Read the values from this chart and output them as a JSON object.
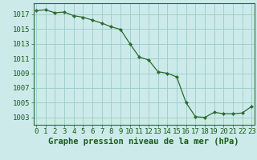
{
  "xlabel": "Graphe pression niveau de la mer (hPa)",
  "x_vals": [
    0,
    1,
    2,
    3,
    4,
    5,
    6,
    7,
    8,
    9,
    10,
    11,
    12,
    13,
    14,
    15,
    16,
    17,
    18,
    19,
    20,
    21,
    22,
    23
  ],
  "y_vals": [
    1017.5,
    1017.6,
    1017.2,
    1017.3,
    1016.8,
    1016.6,
    1016.2,
    1015.8,
    1015.3,
    1014.95,
    1013.0,
    1011.2,
    1010.8,
    1009.2,
    1009.0,
    1008.5,
    1005.0,
    1003.1,
    1003.0,
    1003.7,
    1003.5,
    1003.5,
    1003.6,
    1004.5
  ],
  "ylim": [
    1002.0,
    1018.5
  ],
  "xlim": [
    -0.3,
    23.3
  ],
  "yticks": [
    1003,
    1005,
    1007,
    1009,
    1011,
    1013,
    1015,
    1017
  ],
  "xticks": [
    0,
    1,
    2,
    3,
    4,
    5,
    6,
    7,
    8,
    9,
    10,
    11,
    12,
    13,
    14,
    15,
    16,
    17,
    18,
    19,
    20,
    21,
    22,
    23
  ],
  "line_color": "#2d6a2d",
  "marker_color": "#2d6a2d",
  "bg_color": "#cceaea",
  "grid_color": "#99cccc",
  "label_color": "#1a5c1a",
  "xlabel_fontsize": 7.5,
  "tick_fontsize": 6.5
}
